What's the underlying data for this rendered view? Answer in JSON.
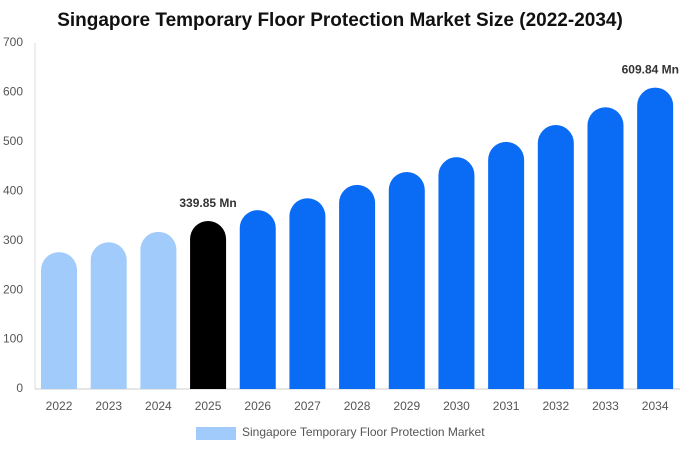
{
  "chart_data": {
    "type": "bar",
    "title": "Singapore Temporary Floor Protection Market Size (2022-2034)",
    "categories": [
      "2022",
      "2023",
      "2024",
      "2025",
      "2026",
      "2027",
      "2028",
      "2029",
      "2030",
      "2031",
      "2032",
      "2033",
      "2034"
    ],
    "series": [
      {
        "name": "Singapore Temporary Floor Protection Market",
        "color": "#a0cbfb",
        "values": [
          277,
          297,
          318,
          339.85,
          362,
          386,
          413,
          439,
          469,
          500,
          534,
          570,
          609.84
        ],
        "value_labels": [
          null,
          null,
          null,
          "339.85 Mn",
          null,
          null,
          null,
          null,
          null,
          null,
          null,
          null,
          "609.84 Mn"
        ],
        "colors": [
          "#a0cbfb",
          "#a0cbfb",
          "#a0cbfb",
          "#000000",
          "#0a6cf5",
          "#0a6cf5",
          "#0a6cf5",
          "#0a6cf5",
          "#0a6cf5",
          "#0a6cf5",
          "#0a6cf5",
          "#0a6cf5",
          "#0a6cf5"
        ]
      }
    ],
    "ylim": [
      0,
      700
    ],
    "yticks": [
      0,
      100,
      200,
      300,
      400,
      500,
      600,
      700
    ],
    "grid": false
  }
}
